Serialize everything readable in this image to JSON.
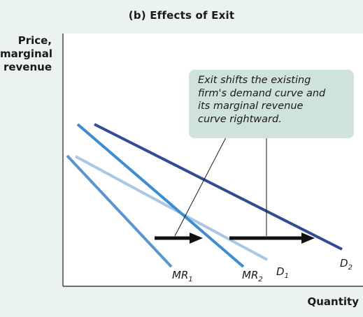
{
  "title": "(b) Effects of Exit",
  "y_axis_label": [
    "Price,",
    "marginal",
    "revenue"
  ],
  "x_axis_label": "Quantity",
  "annotation": [
    "Exit shifts the existing",
    "firm's demand curve and",
    "its marginal revenue",
    "curve rightward."
  ],
  "curves": {
    "D1": {
      "letter": "D",
      "sub": "1",
      "color": "#a9c8e6"
    },
    "MR1": {
      "letter": "MR",
      "sub": "1",
      "color": "#5b95d0"
    },
    "MR2": {
      "letter": "MR",
      "sub": "2",
      "color": "#3e8cd1"
    },
    "D2": {
      "letter": "D",
      "sub": "2",
      "color": "#2f4d96"
    }
  },
  "colors": {
    "panel_background": "#eaf3ef",
    "plot_background": "#ffffff",
    "callout_background": "#cfe3da",
    "arrows": "#111111"
  }
}
